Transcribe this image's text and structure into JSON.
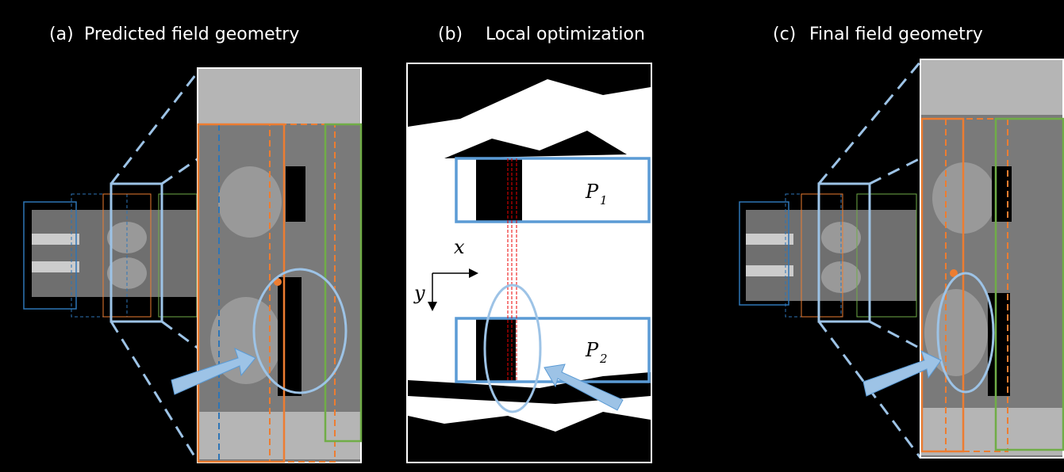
{
  "panels": [
    {
      "label": "(a)",
      "title": "Predicted field geometry"
    },
    {
      "label": "(b)",
      "title": "Local optimization"
    },
    {
      "label": "(c)",
      "title": "Final field geometry"
    }
  ],
  "annotations": {
    "x": "x",
    "y": "y",
    "p1": {
      "base": "P",
      "sub": "1"
    },
    "p2": {
      "base": "P",
      "sub": "2"
    }
  }
}
